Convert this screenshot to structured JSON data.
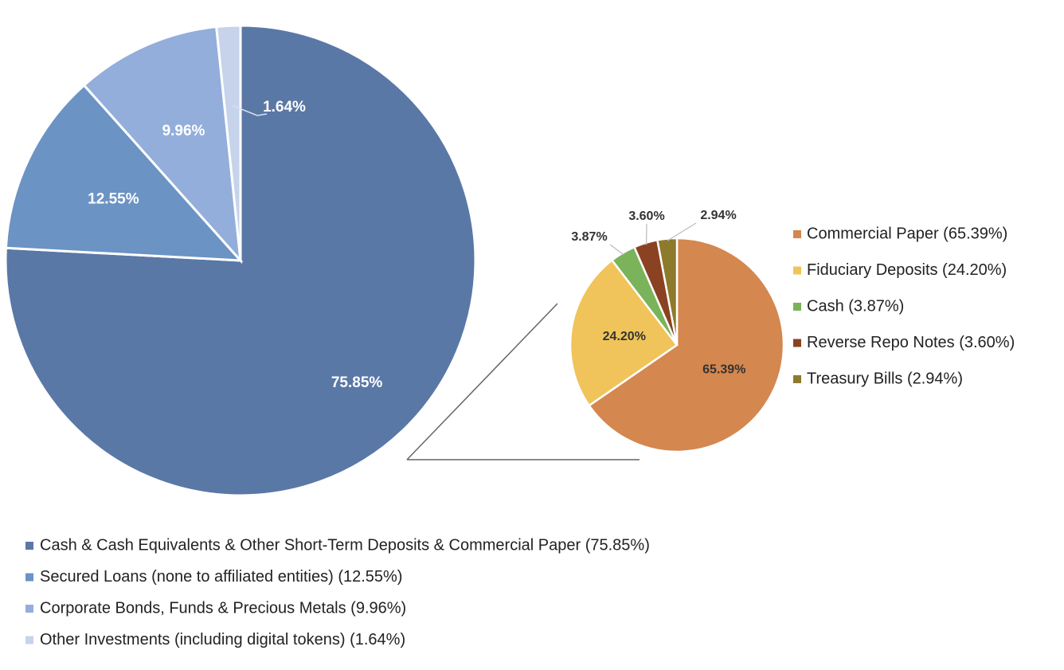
{
  "chart_data": [
    {
      "type": "pie",
      "title": "",
      "series": [
        {
          "values": [
            75.85,
            12.55,
            9.96,
            1.64
          ],
          "labels": [
            "75.85%",
            "12.55%",
            "9.96%",
            "1.64%"
          ],
          "legend": [
            "Cash & Cash Equivalents & Other Short-Term Deposits & Commercial Paper (75.85%)",
            "Secured Loans (none to affiliated entities) (12.55%)",
            "Corporate Bonds, Funds & Precious Metals (9.96%)",
            "Other Investments (including digital tokens) (1.64%)"
          ],
          "colors": [
            "#5a78a6",
            "#6b93c4",
            "#93aedb",
            "#c6d3ea"
          ]
        }
      ],
      "legend_position": "bottom",
      "label_color": "#ffffff",
      "outside_label_color": "#333333"
    },
    {
      "type": "pie",
      "title": "",
      "series": [
        {
          "values": [
            65.39,
            24.2,
            3.87,
            3.6,
            2.94
          ],
          "labels": [
            "65.39%",
            "24.20%",
            "3.87%",
            "3.60%",
            "2.94%"
          ],
          "legend": [
            "Commercial Paper (65.39%)",
            "Fiduciary Deposits (24.20%)",
            "Cash (3.87%)",
            "Reverse Repo Notes (3.60%)",
            "Treasury Bills (2.94%)"
          ],
          "colors": [
            "#d4874f",
            "#f0c45a",
            "#7ab35a",
            "#8b4222",
            "#8d7a2c"
          ]
        }
      ],
      "legend_position": "right",
      "label_color": "#333333",
      "outside_label_color": "#333333"
    }
  ]
}
